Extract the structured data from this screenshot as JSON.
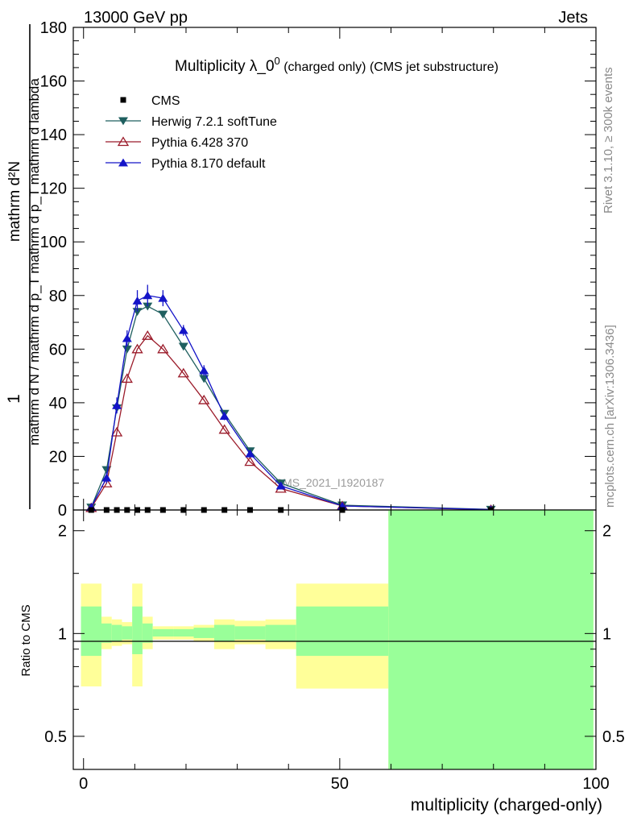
{
  "header": {
    "left": "13000 GeV pp",
    "right": "Jets"
  },
  "side_labels": {
    "rivet": "Rivet 3.1.10, ≥ 300k events",
    "mcplots": "mcplots.cern.ch [arXiv:1306.3436]"
  },
  "title": {
    "main": "Multiplicity λ_0",
    "sup": "0",
    "sub": " (charged only) (CMS jet substructure)"
  },
  "ylabel": {
    "numerator": "mathrm d²N",
    "num_one": "1",
    "denominator": "mathrm d N / mathrm d p_T mathrm d p_T mathrm d lambda"
  },
  "ratio_ylabel": "Ratio to CMS",
  "xlabel": "multiplicity (charged-only)",
  "watermark": "CMS_2021_I1920187",
  "legend": [
    {
      "label": "CMS",
      "color": "#000000",
      "marker": "square"
    },
    {
      "label": "Herwig 7.2.1 softTune",
      "color": "#1f5f5f",
      "marker": "triangle-down"
    },
    {
      "label": "Pythia 6.428 370",
      "color": "#9b1b2a",
      "marker": "triangle-open"
    },
    {
      "label": "Pythia 8.170 default",
      "color": "#1414c8",
      "marker": "triangle-up"
    }
  ],
  "chart_data": {
    "type": "line",
    "xlim": [
      -2,
      100
    ],
    "ylim": [
      0,
      180
    ],
    "ratio_ylim": [
      0.4,
      2.3
    ],
    "x_ticks": [
      "0",
      "50",
      "100"
    ],
    "y_ticks": [
      "0",
      "20",
      "40",
      "60",
      "80",
      "100",
      "120",
      "140",
      "160",
      "180"
    ],
    "ratio_ticks": [
      "0.5",
      "1",
      "2"
    ],
    "cms_x": [
      1.5,
      4.5,
      6.5,
      8.5,
      10.5,
      12.5,
      15.5,
      19.5,
      23.5,
      27.5,
      32.5,
      38.5,
      50.5,
      79.5
    ],
    "cms_y": [
      0,
      0,
      0,
      0,
      0,
      0,
      0,
      0,
      0,
      0,
      0,
      0,
      0,
      0
    ],
    "series": [
      {
        "name": "Herwig 7.2.1 softTune",
        "x": [
          1.5,
          4.5,
          6.5,
          8.5,
          10.5,
          12.5,
          15.5,
          19.5,
          23.5,
          27.5,
          32.5,
          38.5,
          50.5,
          79.5
        ],
        "y": [
          1,
          15,
          38,
          60,
          74,
          76,
          73,
          61,
          49,
          36,
          22,
          10,
          1.8,
          0.2
        ]
      },
      {
        "name": "Pythia 6.428 370",
        "x": [
          1.5,
          4.5,
          6.5,
          8.5,
          10.5,
          12.5,
          15.5,
          19.5,
          23.5,
          27.5,
          32.5,
          38.5,
          50.5,
          79.5
        ],
        "y": [
          0.8,
          10,
          29,
          49,
          60,
          65,
          60,
          51,
          41,
          30,
          18,
          8,
          1.5,
          0.1
        ]
      },
      {
        "name": "Pythia 8.170 default",
        "x": [
          1.5,
          4.5,
          6.5,
          8.5,
          10.5,
          12.5,
          15.5,
          19.5,
          23.5,
          27.5,
          32.5,
          38.5,
          50.5,
          79.5
        ],
        "y": [
          1,
          12,
          39,
          64,
          78,
          80,
          79,
          67,
          52,
          35,
          21,
          9,
          1.5,
          0.15
        ],
        "err": [
          0.5,
          2,
          3,
          3,
          4,
          4,
          3,
          2,
          2,
          1.5,
          1,
          1,
          0.3,
          0.1
        ]
      }
    ],
    "ratio_bands": [
      {
        "x0": -0.5,
        "x1": 3.5,
        "yellow": [
          0.7,
          1.4
        ],
        "green": [
          0.86,
          1.2
        ]
      },
      {
        "x0": 3.5,
        "x1": 5.5,
        "yellow": [
          0.9,
          1.12
        ],
        "green": [
          0.94,
          1.07
        ]
      },
      {
        "x0": 5.5,
        "x1": 7.5,
        "yellow": [
          0.92,
          1.1
        ],
        "green": [
          0.95,
          1.06
        ]
      },
      {
        "x0": 7.5,
        "x1": 9.5,
        "yellow": [
          0.93,
          1.08
        ],
        "green": [
          0.96,
          1.05
        ]
      },
      {
        "x0": 9.5,
        "x1": 11.5,
        "yellow": [
          0.7,
          1.4
        ],
        "green": [
          0.87,
          1.2
        ]
      },
      {
        "x0": 11.5,
        "x1": 13.5,
        "yellow": [
          0.9,
          1.12
        ],
        "green": [
          0.94,
          1.07
        ]
      },
      {
        "x0": 13.5,
        "x1": 17.5,
        "yellow": [
          0.96,
          1.05
        ],
        "green": [
          0.98,
          1.03
        ]
      },
      {
        "x0": 17.5,
        "x1": 21.5,
        "yellow": [
          0.96,
          1.05
        ],
        "green": [
          0.98,
          1.03
        ]
      },
      {
        "x0": 21.5,
        "x1": 25.5,
        "yellow": [
          0.95,
          1.06
        ],
        "green": [
          0.97,
          1.04
        ]
      },
      {
        "x0": 25.5,
        "x1": 29.5,
        "yellow": [
          0.9,
          1.1
        ],
        "green": [
          0.95,
          1.06
        ]
      },
      {
        "x0": 29.5,
        "x1": 35.5,
        "yellow": [
          0.93,
          1.09
        ],
        "green": [
          0.96,
          1.05
        ]
      },
      {
        "x0": 35.5,
        "x1": 41.5,
        "yellow": [
          0.9,
          1.1
        ],
        "green": [
          0.95,
          1.06
        ]
      },
      {
        "x0": 41.5,
        "x1": 59.5,
        "yellow": [
          0.69,
          1.4
        ],
        "green": [
          0.86,
          1.2
        ]
      },
      {
        "x0": 59.5,
        "x1": 99.5,
        "yellow": [
          0.3,
          3.0
        ],
        "green": [
          0.3,
          3.0
        ]
      }
    ]
  }
}
